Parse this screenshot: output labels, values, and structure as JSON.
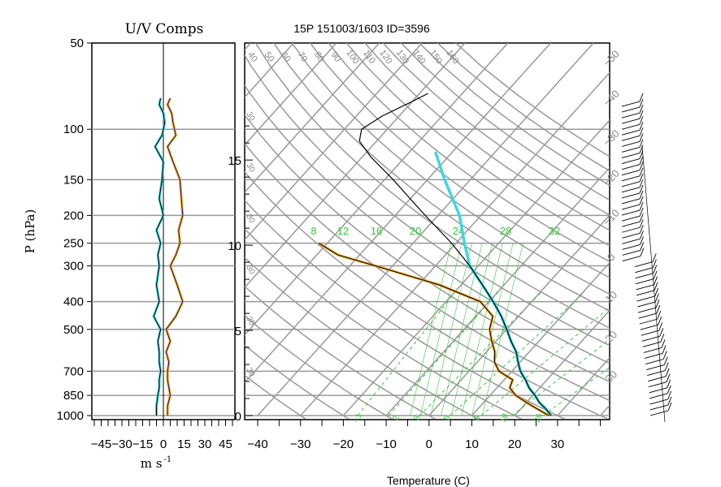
{
  "chart_data": [
    {
      "type": "line",
      "title": "U/V Comps",
      "xlabel": "m s",
      "xlabel_exp": "-1",
      "ylabel": "P (hPa)",
      "y_scale": "log",
      "ylim": [
        1000,
        50
      ],
      "xlim": [
        -50,
        50
      ],
      "y_ticks": [
        "50",
        "100",
        "150",
        "200",
        "250",
        "300",
        "400",
        "500",
        "700",
        "850",
        "1000"
      ],
      "y_tick_values": [
        50,
        100,
        150,
        200,
        250,
        300,
        400,
        500,
        700,
        850,
        1000
      ],
      "x_ticks": [
        "−45",
        "−30",
        "−15",
        "0",
        "15",
        "30",
        "45"
      ],
      "x_tick_values": [
        -45,
        -30,
        -15,
        0,
        15,
        30,
        45
      ],
      "colors": {
        "u": "#f5a623",
        "v": "#3fd6e0"
      },
      "series": [
        {
          "p": [
            1000,
            925,
            850,
            800,
            750,
            700,
            650,
            600,
            550,
            500,
            450,
            400,
            350,
            300,
            275,
            250,
            225,
            200,
            175,
            150,
            130,
            115,
            105,
            95,
            88,
            82,
            78
          ],
          "u": [
            3,
            3,
            5,
            4,
            3,
            3,
            4,
            2,
            5,
            2,
            9,
            14,
            10,
            5,
            9,
            12,
            11,
            14,
            13,
            12,
            7,
            3,
            9,
            7,
            6,
            3,
            5
          ],
          "v": [
            -5,
            -5,
            -4,
            -3,
            -3,
            -2,
            -3,
            -3,
            -4,
            -2,
            -7,
            -3,
            -5,
            -3,
            -4,
            -2,
            -5,
            0,
            -3,
            -1,
            0,
            -6,
            -1,
            1,
            0,
            -3,
            -2
          ]
        }
      ]
    },
    {
      "type": "line",
      "title": "15P 151003/1603 ID=3596",
      "xlabel": "Temperature (C)",
      "y_scale": "log",
      "ylim": [
        1000,
        50
      ],
      "xlim": [
        -45,
        50
      ],
      "x_ticks": [
        "−40",
        "−30",
        "−20",
        "−10",
        "0",
        "10",
        "20",
        "30"
      ],
      "x_tick_values": [
        -40,
        -30,
        -20,
        -10,
        0,
        10,
        20,
        30
      ],
      "height_ticks": [
        "0",
        "5",
        "10",
        "15"
      ],
      "height_tick_values": [
        0,
        5,
        10,
        15
      ],
      "theta_labels": [
        "40",
        "50",
        "60",
        "70",
        "80",
        "90",
        "100",
        "110",
        "120",
        "130",
        "140",
        "150",
        "160"
      ],
      "mixing_labels": [
        "8",
        "12",
        "16",
        "20",
        "24",
        "28",
        "32"
      ],
      "moist_labels": [
        "−1",
        "2",
        "3",
        "5",
        "6",
        "18",
        "26"
      ],
      "isotherm_labels": [
        "−50",
        "−40",
        "−30",
        "−20",
        "−10",
        "0",
        "10",
        "20",
        "30"
      ],
      "height_scale_labels": [
        "30",
        "30",
        "30",
        "30",
        "30",
        "30"
      ],
      "colors": {
        "temperature": "#000000",
        "parcel": "#3fd6e0",
        "dewpoint": "#000000",
        "dewpoint_fill": "#f5a623",
        "grid": "#999999",
        "mixing": "#33cc33"
      },
      "series": [
        {
          "name": "",
          "p": [
            1000,
            950,
            900,
            850,
            800,
            750,
            700,
            650,
            600,
            550,
            500,
            450,
            400,
            350,
            300,
            250,
            200,
            175,
            150,
            125,
            110,
            100,
            90,
            80,
            75
          ],
          "t": [
            28.5,
            26,
            23,
            20.5,
            17.5,
            15,
            12,
            9.5,
            7,
            3.5,
            0,
            -4,
            -9,
            -15,
            -22,
            -31,
            -43,
            -50,
            -58,
            -68,
            -74,
            -76,
            -74,
            -70,
            -68
          ]
        },
        {
          "name": "",
          "p": [
            1000,
            950,
            900,
            850,
            800,
            750,
            700,
            650,
            600,
            550,
            500,
            450,
            400,
            350,
            300,
            275,
            250
          ],
          "t": [
            28,
            24,
            20,
            16,
            13,
            12,
            7,
            4,
            2,
            -1,
            -4,
            -6,
            -12,
            -25,
            -44,
            -55,
            -62
          ]
        },
        {
          "name": "",
          "p": [
            1000,
            950,
            900,
            850,
            800,
            750,
            700,
            650,
            600,
            550,
            500,
            450,
            400,
            350,
            300,
            250,
            200,
            150,
            120
          ],
          "t": [
            28.5,
            26,
            23,
            20.5,
            17.5,
            15,
            12,
            9.5,
            7,
            3.5,
            0,
            -4,
            -9,
            -15,
            -22,
            -28,
            -35,
            -46,
            -54
          ]
        }
      ]
    }
  ]
}
